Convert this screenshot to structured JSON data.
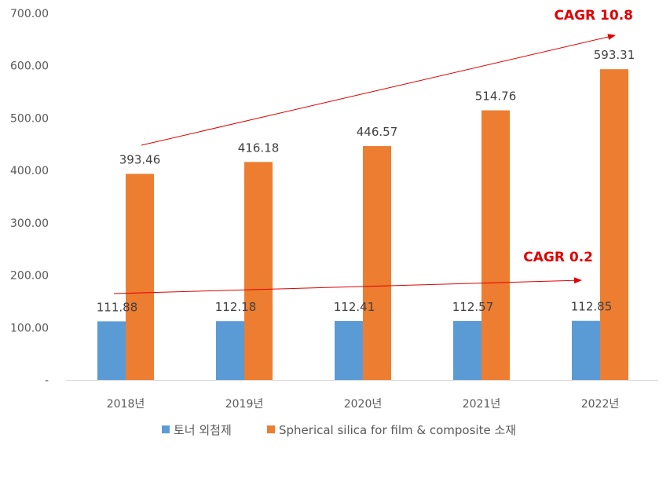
{
  "chart_data": {
    "type": "bar",
    "categories": [
      "2018년",
      "2019년",
      "2020년",
      "2021년",
      "2022년"
    ],
    "series": [
      {
        "name": "토너 외첨제",
        "color": "#5b9bd5",
        "values": [
          111.88,
          112.18,
          112.41,
          112.57,
          112.85
        ]
      },
      {
        "name": "Spherical silica for film & composite 소재",
        "color": "#ed7d31",
        "values": [
          393.46,
          416.18,
          446.57,
          514.76,
          593.31
        ]
      }
    ],
    "ylim": [
      0,
      700
    ],
    "yticks": [
      0,
      100,
      200,
      300,
      400,
      500,
      600,
      700
    ],
    "ytick_labels": [
      "-",
      "100.00",
      "200.00",
      "300.00",
      "400.00",
      "500.00",
      "600.00",
      "700.00"
    ],
    "grid": false,
    "legend": "bottom",
    "annotations": [
      {
        "text": "CAGR 10.8",
        "color": "#e00000",
        "series": 1
      },
      {
        "text": "CAGR 0.2",
        "color": "#e00000",
        "series": 0
      }
    ]
  }
}
